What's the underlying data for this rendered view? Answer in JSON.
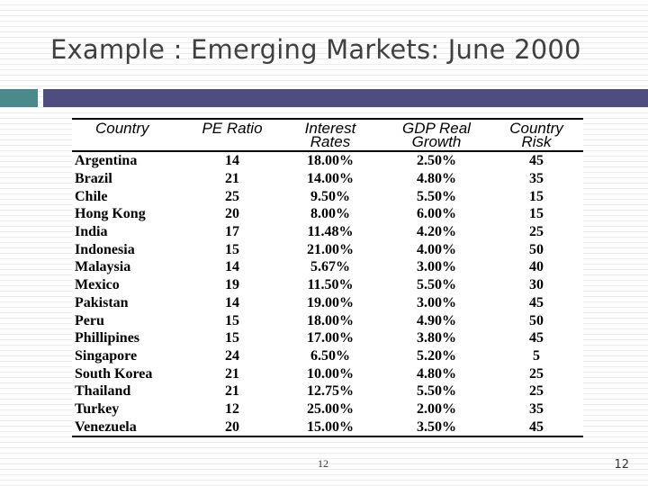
{
  "slide": {
    "title": "Example : Emerging Markets: June 2000",
    "colors": {
      "accent_block": "#4a8a8c",
      "accent_bar": "#4d4e7f"
    }
  },
  "table": {
    "headers": [
      "Country",
      "PE Ratio",
      "Interest Rates",
      "GDP Real Growth",
      "Country Risk"
    ],
    "rows": [
      [
        "Argentina",
        "14",
        "18.00%",
        "2.50%",
        "45"
      ],
      [
        "Brazil",
        "21",
        "14.00%",
        "4.80%",
        "35"
      ],
      [
        "Chile",
        "25",
        "9.50%",
        "5.50%",
        "15"
      ],
      [
        "Hong Kong",
        "20",
        "8.00%",
        "6.00%",
        "15"
      ],
      [
        "India",
        "17",
        "11.48%",
        "4.20%",
        "25"
      ],
      [
        "Indonesia",
        "15",
        "21.00%",
        "4.00%",
        "50"
      ],
      [
        "Malaysia",
        "14",
        "5.67%",
        "3.00%",
        "40"
      ],
      [
        "Mexico",
        "19",
        "11.50%",
        "5.50%",
        "30"
      ],
      [
        "Pakistan",
        "14",
        "19.00%",
        "3.00%",
        "45"
      ],
      [
        "Peru",
        "15",
        "18.00%",
        "4.90%",
        "50"
      ],
      [
        "Phillipines",
        "15",
        "17.00%",
        "3.80%",
        "45"
      ],
      [
        "Singapore",
        "24",
        "6.50%",
        "5.20%",
        "5"
      ],
      [
        "South Korea",
        "21",
        "10.00%",
        "4.80%",
        "25"
      ],
      [
        "Thailand",
        "21",
        "12.75%",
        "5.50%",
        "25"
      ],
      [
        "Turkey",
        "12",
        "25.00%",
        "2.00%",
        "35"
      ],
      [
        "Venezuela",
        "20",
        "15.00%",
        "3.50%",
        "45"
      ]
    ]
  },
  "footer": {
    "center_page_number": "12",
    "right_page_number": "12"
  }
}
